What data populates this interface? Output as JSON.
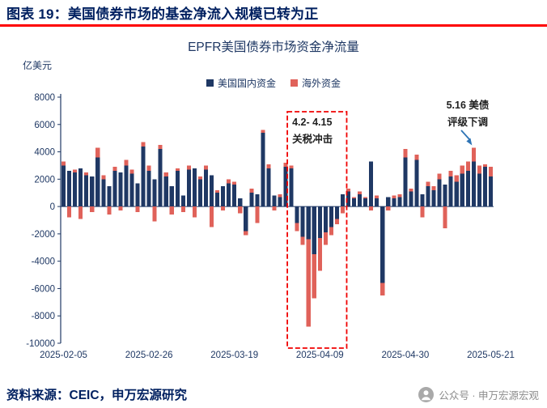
{
  "header": {
    "title": "图表 19：美国债券市场的基金净流入规模已转为正"
  },
  "footer": {
    "source": "资料来源：CEIC，申万宏源研究",
    "wechat_label": "公众号 · 申万宏源宏观"
  },
  "colors": {
    "header_navy": "#002060",
    "axis_navy": "#1F3864",
    "underline_red": "#FE0000",
    "box_red": "#F00000",
    "arrow_blue": "#2E74B5",
    "annotation_dark": "#1F1F1F"
  },
  "chart_data": {
    "type": "bar",
    "stacked": true,
    "title": "EPFR美国债券市场资金净流量",
    "unit_label": "亿美元",
    "ylim": [
      -10000,
      8000
    ],
    "yticks": [
      8000,
      6000,
      4000,
      2000,
      0,
      -2000,
      -4000,
      -6000,
      -8000,
      -10000
    ],
    "x_tick_indices": [
      0,
      15,
      30,
      45,
      60,
      75
    ],
    "x_tick_labels": [
      "2025-02-05",
      "2025-02-26",
      "2025-03-19",
      "2025-04-09",
      "2025-04-30",
      "2025-05-21"
    ],
    "dates": [
      "2025-02-05",
      "2025-02-06",
      "2025-02-07",
      "2025-02-10",
      "2025-02-11",
      "2025-02-12",
      "2025-02-13",
      "2025-02-14",
      "2025-02-17",
      "2025-02-18",
      "2025-02-19",
      "2025-02-20",
      "2025-02-21",
      "2025-02-24",
      "2025-02-25",
      "2025-02-26",
      "2025-02-27",
      "2025-02-28",
      "2025-03-03",
      "2025-03-04",
      "2025-03-05",
      "2025-03-06",
      "2025-03-07",
      "2025-03-10",
      "2025-03-11",
      "2025-03-12",
      "2025-03-13",
      "2025-03-14",
      "2025-03-17",
      "2025-03-18",
      "2025-03-19",
      "2025-03-20",
      "2025-03-21",
      "2025-03-24",
      "2025-03-25",
      "2025-03-26",
      "2025-03-27",
      "2025-03-28",
      "2025-03-31",
      "2025-04-01",
      "2025-04-02",
      "2025-04-03",
      "2025-04-04",
      "2025-04-07",
      "2025-04-08",
      "2025-04-09",
      "2025-04-10",
      "2025-04-11",
      "2025-04-14",
      "2025-04-15",
      "2025-04-16",
      "2025-04-17",
      "2025-04-18",
      "2025-04-21",
      "2025-04-22",
      "2025-04-23",
      "2025-04-24",
      "2025-04-25",
      "2025-04-28",
      "2025-04-29",
      "2025-04-30",
      "2025-05-01",
      "2025-05-02",
      "2025-05-05",
      "2025-05-06",
      "2025-05-07",
      "2025-05-08",
      "2025-05-09",
      "2025-05-12",
      "2025-05-13",
      "2025-05-14",
      "2025-05-15",
      "2025-05-16",
      "2025-05-19",
      "2025-05-20",
      "2025-05-21"
    ],
    "series": [
      {
        "name": "美国国内资金",
        "color": "#1F3864",
        "values": [
          3000,
          2600,
          2500,
          2800,
          2300,
          2200,
          3600,
          2000,
          1500,
          2600,
          2500,
          3000,
          2400,
          1700,
          4400,
          2600,
          2000,
          4200,
          2200,
          1500,
          2600,
          800,
          2700,
          2800,
          2000,
          2700,
          2300,
          1000,
          1500,
          1700,
          1600,
          600,
          -1800,
          1000,
          900,
          5400,
          2800,
          800,
          700,
          2900,
          2800,
          -1200,
          -2200,
          -2400,
          -3500,
          -2300,
          -1900,
          -1500,
          -900,
          900,
          1100,
          600,
          900,
          600,
          3300,
          600,
          -5600,
          700,
          600,
          700,
          3600,
          1100,
          3400,
          900,
          1500,
          1200,
          2000,
          1600,
          2200,
          1800,
          2400,
          2600,
          3300,
          2400,
          2900,
          2200
        ]
      },
      {
        "name": "海外资金",
        "color": "#E0625A",
        "values": [
          300,
          -800,
          200,
          -900,
          200,
          -400,
          700,
          300,
          -600,
          300,
          -300,
          400,
          300,
          -400,
          300,
          400,
          -1100,
          300,
          300,
          -600,
          200,
          -400,
          300,
          -800,
          200,
          300,
          -1500,
          200,
          -300,
          300,
          200,
          -500,
          -300,
          300,
          -1200,
          200,
          300,
          -300,
          200,
          300,
          200,
          -600,
          -600,
          -6400,
          -3200,
          -2400,
          -900,
          -600,
          -400,
          -500,
          200,
          100,
          200,
          100,
          -300,
          200,
          -900,
          -300,
          200,
          200,
          600,
          200,
          400,
          -800,
          300,
          300,
          400,
          -1600,
          400,
          500,
          600,
          700,
          1000,
          600,
          200,
          700
        ]
      }
    ],
    "annotations": {
      "tariff_box": {
        "text_line1": "4.2- 4.15",
        "text_line2": "关税冲击",
        "start_index": 40,
        "end_index": 49
      },
      "rating_note": {
        "text_line1": "5.16 美债",
        "text_line2": "评级下调",
        "target_index": 72
      }
    }
  }
}
